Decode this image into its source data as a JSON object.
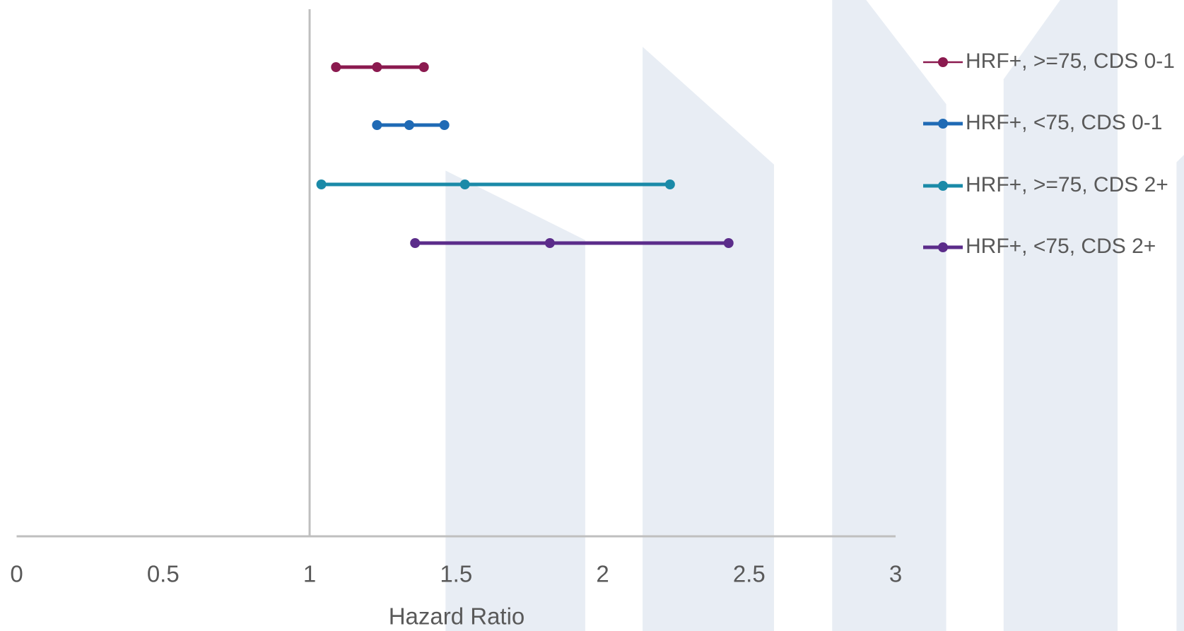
{
  "chart_data": {
    "type": "forest",
    "x_label": "Hazard Ratio",
    "xlim": [
      0,
      3
    ],
    "xticks": [
      0,
      0.5,
      1,
      1.5,
      2,
      2.5,
      3
    ],
    "y_axis_crosses": 1,
    "grid": false,
    "legend": "right",
    "series": [
      {
        "name": "HRF+, >=75, CDS 0-1",
        "color": "#8b1a4f",
        "values": [
          1.09,
          1.23,
          1.39
        ]
      },
      {
        "name": "HRF+, <75, CDS 0-1",
        "color": "#1f6ab5",
        "values": [
          1.23,
          1.34,
          1.46
        ]
      },
      {
        "name": "HRF+, >=75, CDS 2+",
        "color": "#1a8aa8",
        "values": [
          1.04,
          1.53,
          2.23
        ]
      },
      {
        "name": "HRF+, <75, CDS 2+",
        "color": "#5b2c8a",
        "values": [
          1.36,
          1.82,
          2.43
        ]
      }
    ]
  }
}
